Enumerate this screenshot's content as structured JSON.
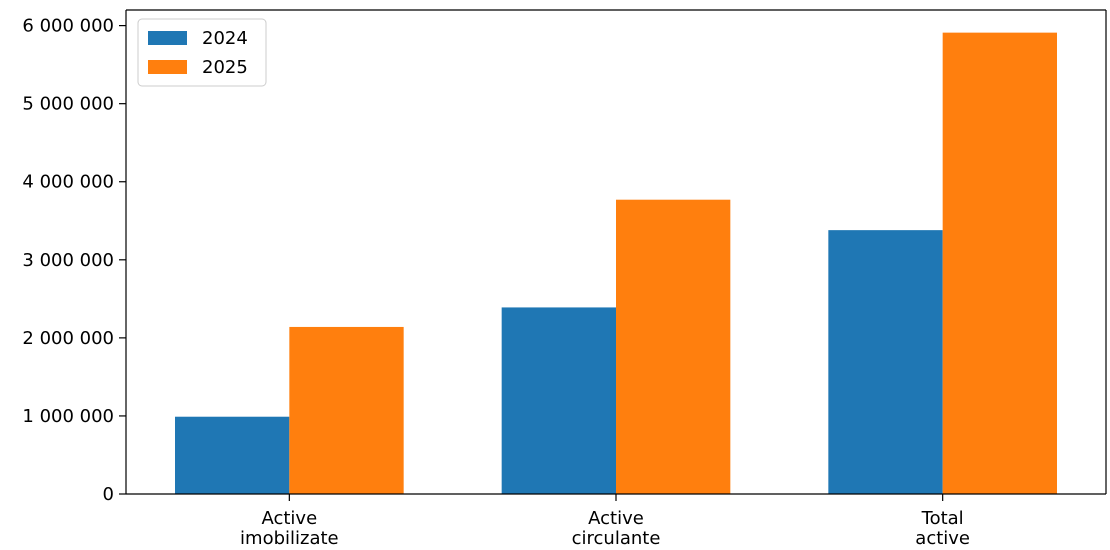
{
  "chart_data": {
    "type": "bar",
    "title": "",
    "xlabel": "",
    "ylabel": "",
    "categories": [
      [
        "Active",
        "imobilizate"
      ],
      [
        "Active",
        "circulante"
      ],
      [
        "Total",
        "active"
      ]
    ],
    "series": [
      {
        "name": "2024",
        "color": "#1f77b4",
        "values": [
          990000,
          2390000,
          3380000
        ]
      },
      {
        "name": "2025",
        "color": "#ff7f0e",
        "values": [
          2140000,
          3770000,
          5910000
        ]
      }
    ],
    "ylim": [
      0,
      6200000
    ],
    "yticks": [
      0,
      1000000,
      2000000,
      3000000,
      4000000,
      5000000,
      6000000
    ],
    "ytick_labels": [
      "0",
      "1 000 000",
      "2 000 000",
      "3 000 000",
      "4 000 000",
      "5 000 000",
      "6 000 000"
    ],
    "grid": false,
    "legend_position": "top-left"
  }
}
